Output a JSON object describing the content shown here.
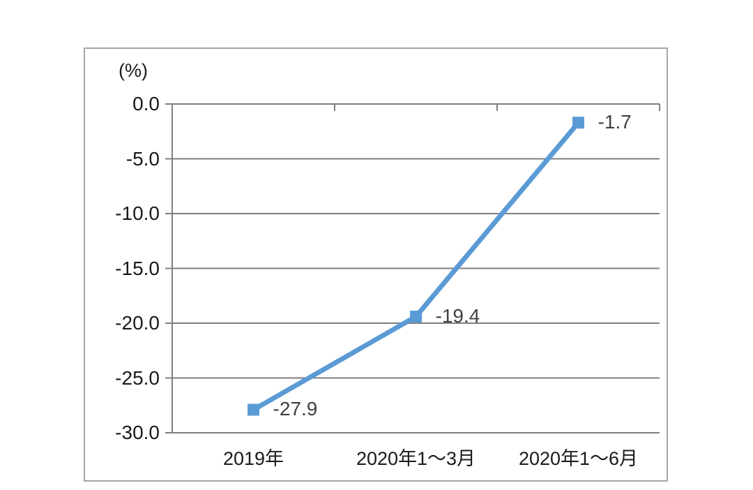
{
  "chart_data": {
    "type": "line",
    "title": "",
    "unit_label": "(%)",
    "categories": [
      "2019年",
      "2020年1～3月",
      "2020年1～6月"
    ],
    "values": [
      -27.9,
      -19.4,
      -1.7
    ],
    "point_labels": [
      "-27.9",
      "-19.4",
      "-1.7"
    ],
    "yticks": [
      0,
      -5,
      -10,
      -15,
      -20,
      -25,
      -30
    ],
    "ytick_labels": [
      "0.0",
      "-5.0",
      "-10.0",
      "-15.0",
      "-20.0",
      "-25.0",
      "-30.0"
    ],
    "ylim": [
      -30,
      0
    ],
    "grid": true,
    "legend": "none",
    "marker": "square",
    "line_color": "#5b9bd5",
    "marker_color": "#5b9bd5",
    "gridline_color": "#7f7f7f",
    "axis_color": "#7f7f7f",
    "tick_text_color": "#1a1a1a",
    "data_label_color": "#404040",
    "frame_border_color": "#a6a6a6",
    "background_color": "#ffffff"
  }
}
